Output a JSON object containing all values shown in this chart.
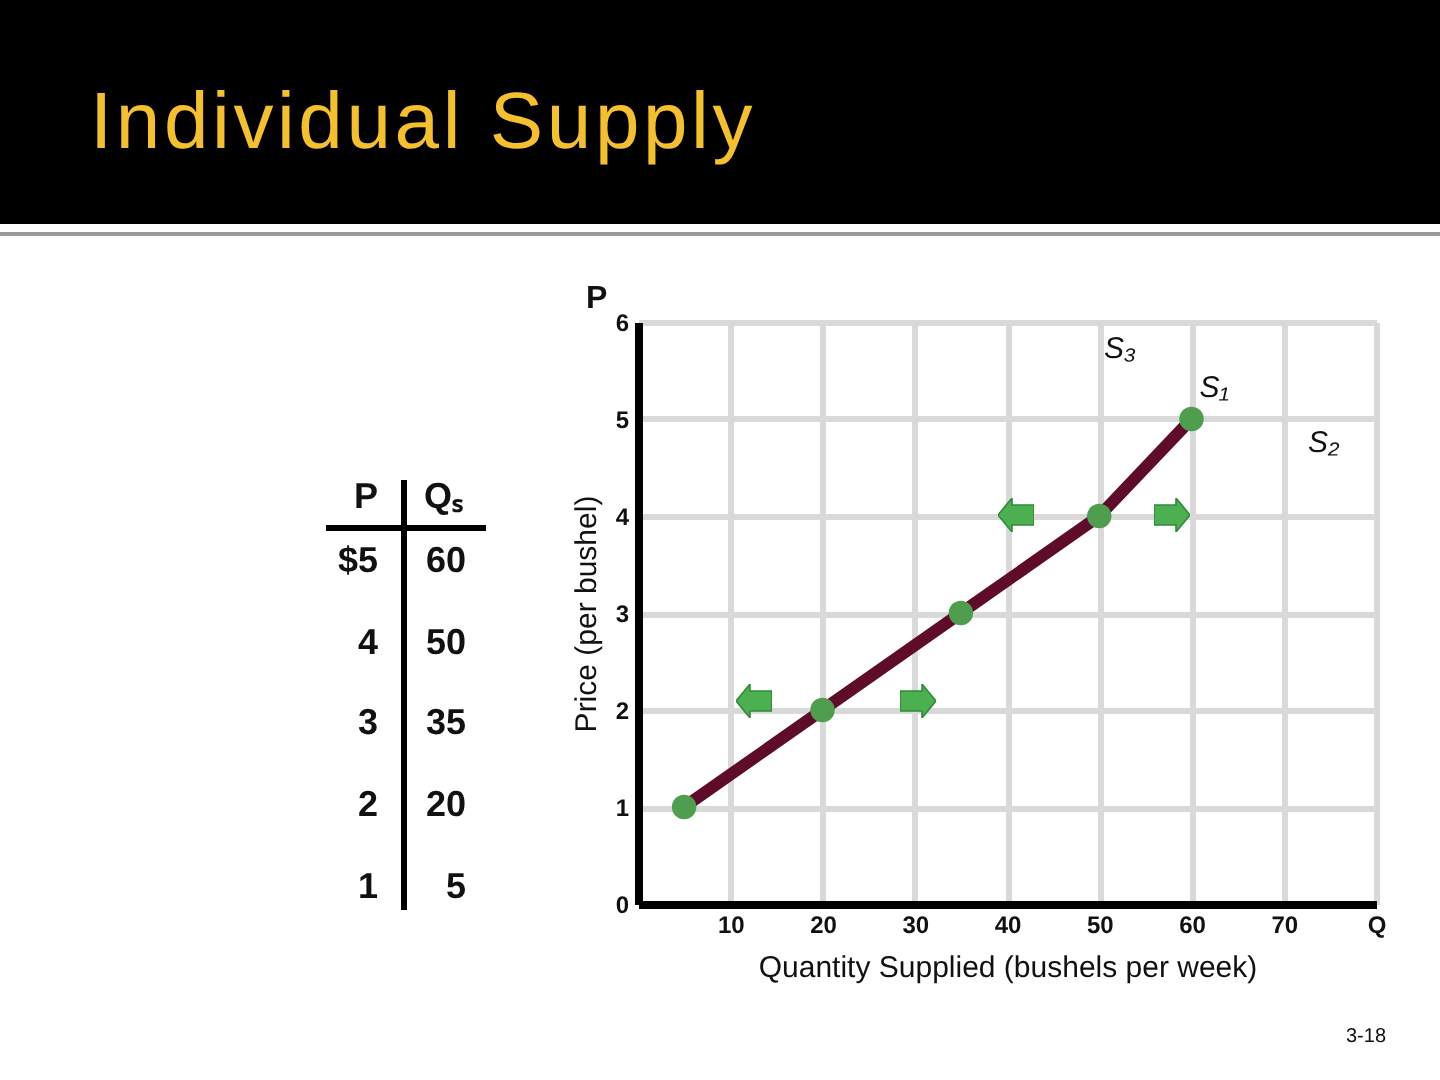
{
  "chart_data": {
    "type": "line",
    "title": "Individual Supply",
    "xlabel": "Quantity Supplied (bushels per week)",
    "ylabel": "Price (per bushel)",
    "x": [
      5,
      20,
      35,
      50,
      60
    ],
    "series": [
      {
        "name": "S₁",
        "color": "#5e0c2a",
        "values": [
          1,
          2,
          3,
          4,
          5
        ]
      },
      {
        "type": "scatter",
        "color": "#4f9d4f",
        "values": [
          1,
          2,
          3,
          4,
          5
        ]
      }
    ],
    "xlim": [
      0,
      80
    ],
    "xticks": [
      10,
      20,
      30,
      40,
      50,
      60,
      70,
      {
        "value": 80,
        "label": "Q"
      }
    ],
    "ylim": [
      0,
      6
    ],
    "yticks": [
      0,
      1,
      2,
      3,
      4,
      5,
      6
    ],
    "grid": true,
    "annotations": [
      "P",
      "Qₛ",
      "$5",
      "60",
      "4",
      "50",
      "3",
      "35",
      "2",
      "20",
      "1",
      "5",
      "P",
      "S₃",
      "S₂",
      "3-18"
    ]
  }
}
